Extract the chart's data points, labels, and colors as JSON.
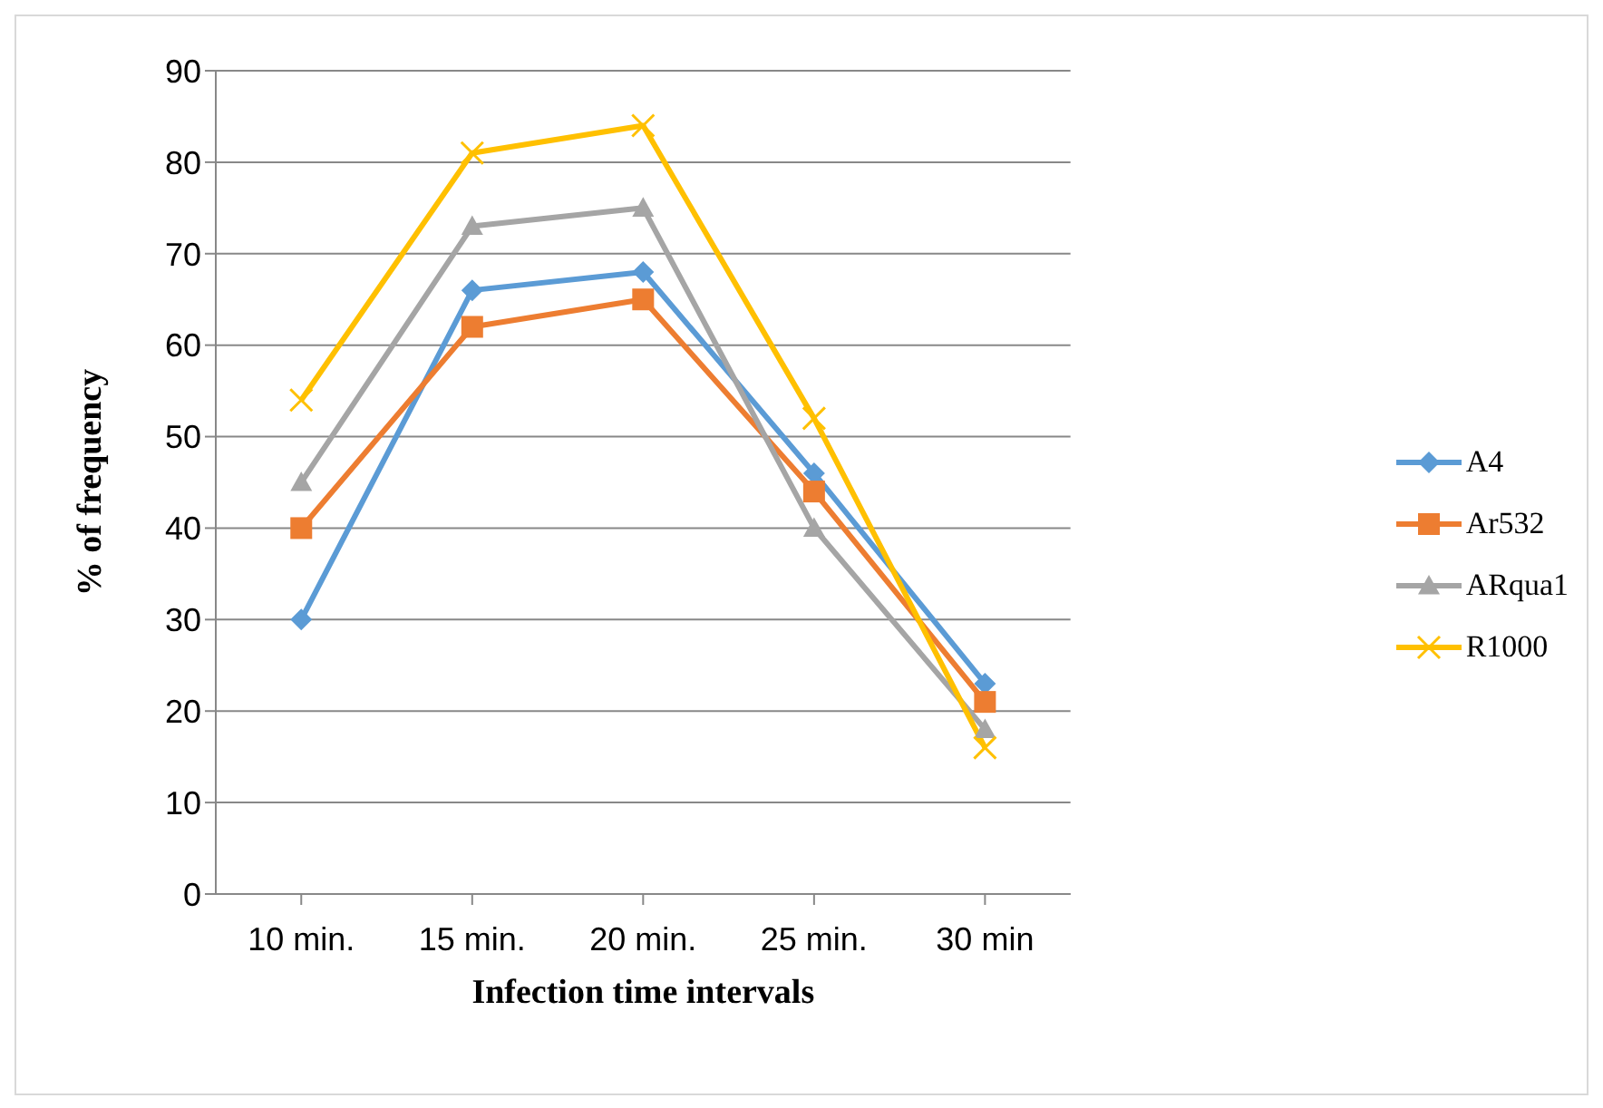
{
  "chart_data": {
    "type": "line",
    "xlabel": "Infection time intervals",
    "ylabel": "% of frequency",
    "categories": [
      "10 min.",
      "15 min.",
      "20 min.",
      "25 min.",
      "30 min"
    ],
    "series": [
      {
        "name": "A4",
        "color": "#5b9bd5",
        "marker": "diamond",
        "values": [
          30,
          66,
          68,
          46,
          23
        ]
      },
      {
        "name": "Ar532",
        "color": "#ed7d31",
        "marker": "square",
        "values": [
          40,
          62,
          65,
          44,
          21
        ]
      },
      {
        "name": "ARqua1",
        "color": "#a5a5a5",
        "marker": "triangle",
        "values": [
          45,
          73,
          75,
          40,
          18
        ]
      },
      {
        "name": "R1000",
        "color": "#ffc000",
        "marker": "cross",
        "values": [
          54,
          81,
          84,
          52,
          16
        ]
      }
    ],
    "ylim": [
      0,
      90
    ],
    "yticks": [
      0,
      10,
      20,
      30,
      40,
      50,
      60,
      70,
      80,
      90
    ],
    "grid": "y",
    "legend": "right",
    "line_style": "solid"
  }
}
